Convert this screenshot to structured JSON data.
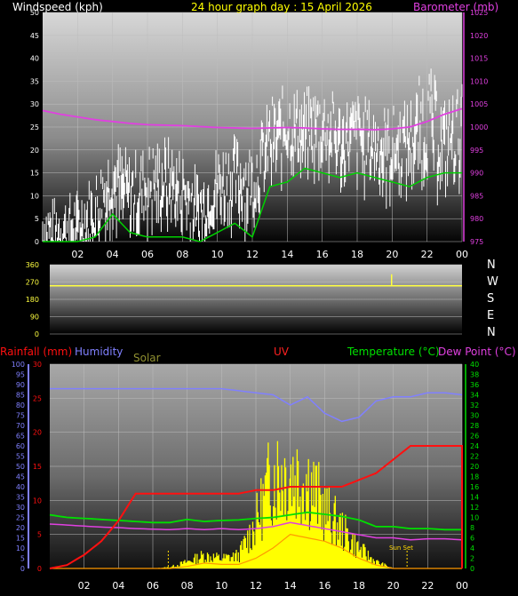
{
  "colors": {
    "background": "#000000",
    "grid": "#bdbdbd",
    "windspeed": "#ffffff",
    "gust_avg": "#00d000",
    "barometer": "#e040e0",
    "direction": "#ffff40",
    "rainfall": "#ff1010",
    "humidity": "#8080ff",
    "solar": "#ffff00",
    "solar_outline": "#ff9900",
    "temperature": "#00e000",
    "dew_point": "#e040e0",
    "compass": "#ffffff",
    "sun_marker": "#ffd800"
  },
  "header": {
    "windspeed_label": "Windspeed (kph)",
    "title": "24 hour graph day : 15 April 2026",
    "barometer_label": "Barometer (mb)"
  },
  "bottom_labels": {
    "rainfall": "Rainfall (mm)",
    "humidity": "Humidity",
    "solar": "Solar",
    "uv": "UV",
    "temperature": "Temperature (°C)",
    "dew_point": "Dew Point (°C)"
  },
  "compass": [
    "N",
    "W",
    "S",
    "E",
    "N"
  ],
  "x_ticks": [
    "02",
    "04",
    "06",
    "08",
    "10",
    "12",
    "14",
    "16",
    "18",
    "20",
    "22",
    "00"
  ],
  "sun_set_label": "Sun Set",
  "chart_data": [
    {
      "type": "line",
      "name": "wind and barometer",
      "x_hours": [
        0,
        1,
        2,
        3,
        4,
        5,
        6,
        7,
        8,
        9,
        10,
        11,
        12,
        13,
        14,
        15,
        16,
        17,
        18,
        19,
        20,
        21,
        22,
        23,
        24
      ],
      "series": [
        {
          "name": "Windspeed (kph)",
          "axis": "left",
          "values": [
            3,
            3,
            4,
            6,
            13,
            9,
            11,
            12,
            10,
            6,
            12,
            13,
            12,
            20,
            24,
            23,
            24,
            21,
            22,
            20,
            19,
            21,
            22,
            20,
            22
          ],
          "max_values": [
            8,
            8,
            10,
            14,
            22,
            18,
            20,
            22,
            19,
            14,
            20,
            22,
            20,
            30,
            33,
            32,
            33,
            30,
            31,
            29,
            28,
            30,
            38,
            30,
            33
          ]
        },
        {
          "name": "gust average",
          "axis": "left",
          "values": [
            0,
            0,
            0,
            1,
            6,
            2,
            1,
            1,
            1,
            0,
            2,
            4,
            1,
            12,
            13,
            16,
            15,
            14,
            15,
            14,
            13,
            12,
            14,
            15,
            15
          ]
        },
        {
          "name": "Barometer (mb)",
          "axis": "right",
          "values": [
            1003.6,
            1002.8,
            1002.2,
            1001.6,
            1001.2,
            1000.8,
            1000.5,
            1000.4,
            1000.3,
            1000.1,
            999.9,
            999.8,
            999.7,
            999.8,
            999.9,
            999.8,
            999.6,
            999.5,
            999.5,
            999.4,
            999.6,
            1000.0,
            1001.2,
            1002.8,
            1004.0
          ]
        }
      ],
      "ylim_left": [
        0,
        50
      ],
      "left_ticks": [
        0,
        5,
        10,
        15,
        20,
        25,
        30,
        35,
        40,
        45,
        50
      ],
      "ylim_right": [
        975,
        1025
      ],
      "right_ticks": [
        975,
        980,
        985,
        990,
        995,
        1000,
        1005,
        1010,
        1015,
        1020,
        1025
      ],
      "grid": true
    },
    {
      "type": "line",
      "name": "wind direction",
      "series": [
        {
          "name": "direction",
          "values": [
            250,
            250,
            250,
            250,
            250,
            250,
            250,
            250,
            250,
            250,
            250,
            250,
            250,
            250,
            250,
            250,
            250,
            250,
            250,
            250,
            250,
            250,
            250,
            250,
            250
          ],
          "spike_hour": 19.9,
          "spike_value": 310
        }
      ],
      "ylim": [
        0,
        360
      ],
      "ticks": [
        0,
        90,
        180,
        270,
        360
      ],
      "grid": true
    },
    {
      "type": "line",
      "name": "rain humidity solar uv temperature dewpoint",
      "x_hours": [
        0,
        1,
        2,
        3,
        4,
        5,
        6,
        7,
        8,
        9,
        10,
        11,
        12,
        13,
        14,
        15,
        16,
        17,
        18,
        19,
        20,
        21,
        22,
        23,
        24
      ],
      "series": [
        {
          "name": "Rainfall (mm)",
          "axis": "rain",
          "values": [
            0,
            0.5,
            2,
            4,
            7,
            11,
            11,
            11,
            11,
            11,
            11,
            11,
            11.5,
            11.5,
            12,
            12,
            12,
            12,
            13,
            14,
            16,
            18,
            18,
            18,
            18
          ]
        },
        {
          "name": "Humidity",
          "axis": "humidity",
          "values": [
            88,
            88,
            88,
            88,
            88,
            88,
            88,
            88,
            88,
            88,
            88,
            87,
            86,
            85,
            80,
            84,
            76,
            72,
            74,
            82,
            84,
            84,
            86,
            86,
            85
          ]
        },
        {
          "name": "Solar",
          "axis": "solar_scale",
          "values": [
            0,
            0,
            0,
            0,
            0,
            0,
            0,
            0.2,
            1,
            2,
            1.5,
            2,
            7,
            15,
            15,
            14,
            9,
            6,
            3,
            1,
            0,
            0,
            0,
            0,
            0
          ]
        },
        {
          "name": "Temperature (°C)",
          "axis": "temperature",
          "values": [
            10.5,
            10,
            9.8,
            9.6,
            9.4,
            9.2,
            9,
            9,
            9.6,
            9.2,
            9.4,
            9.5,
            9.8,
            10,
            10.5,
            11,
            10.6,
            10.2,
            9.5,
            8.2,
            8.2,
            7.8,
            7.8,
            7.6,
            7.6
          ]
        },
        {
          "name": "Dew Point (°C)",
          "axis": "temperature",
          "values": [
            8.7,
            8.5,
            8.3,
            8.1,
            8,
            7.8,
            7.7,
            7.6,
            7.8,
            7.6,
            7.8,
            7.6,
            7.8,
            8.2,
            9,
            8.4,
            7.8,
            7.2,
            6.6,
            6,
            6,
            5.6,
            5.8,
            5.8,
            5.6
          ]
        },
        {
          "name": "UV",
          "axis": "solar_scale",
          "values": [
            0,
            0,
            0,
            0,
            0,
            0,
            0,
            0,
            0.3,
            0.8,
            0.6,
            0.6,
            1.5,
            3,
            5,
            4.5,
            4,
            3,
            1.5,
            0.5,
            0,
            0,
            0,
            0,
            0
          ]
        }
      ],
      "rain_ylim": [
        0,
        30
      ],
      "rain_ticks": [
        0,
        5,
        10,
        15,
        20,
        25,
        30
      ],
      "humidity_ylim": [
        0,
        100
      ],
      "humidity_ticks": [
        0,
        5,
        10,
        15,
        20,
        25,
        30,
        35,
        40,
        45,
        50,
        55,
        60,
        65,
        70,
        75,
        80,
        85,
        90,
        95,
        100
      ],
      "temperature_ylim": [
        0,
        40
      ],
      "temperature_ticks": [
        0,
        2,
        4,
        6,
        8,
        10,
        12,
        14,
        16,
        18,
        20,
        22,
        24,
        26,
        28,
        30,
        32,
        34,
        36,
        38,
        40
      ],
      "sunrise_hour": 6.9,
      "sunset_hour": 20.8,
      "grid": true
    }
  ]
}
